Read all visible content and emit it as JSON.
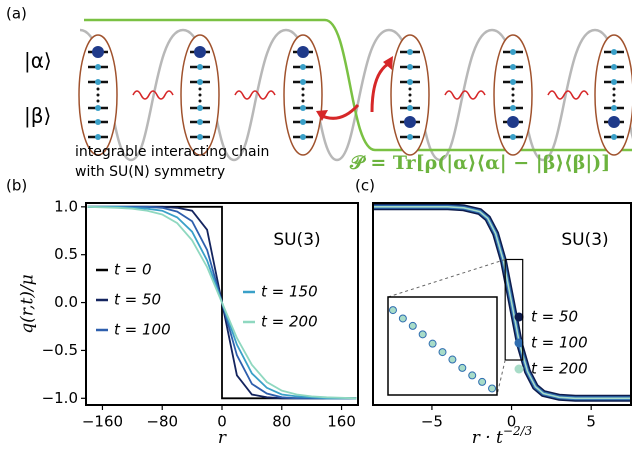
{
  "diagram": {
    "panel_label": "(a)",
    "state_alpha": "|α⟩",
    "state_beta": "|β⟩",
    "caption_line1": "integrable interacting chain",
    "caption_line2": "with SU(N) symmetry",
    "formula": "𝒫 = Tr[ρ(|α⟩⟨α| − |β⟩⟨β|)]"
  },
  "chart_data": [
    {
      "type": "line",
      "panel_label": "(b)",
      "x_label": "r",
      "y_label": "q(r,t)/μ",
      "annotation": "SU(3)",
      "xlim": [
        -182,
        182
      ],
      "ylim": [
        -1.07,
        1.04
      ],
      "xticks": [
        {
          "value": -160,
          "label": "−160"
        },
        {
          "value": -80,
          "label": "−80"
        },
        0,
        80,
        160
      ],
      "yticks": [
        {
          "value": 1,
          "label": "1.0"
        },
        {
          "value": 0.5,
          "label": "0.5"
        },
        {
          "value": 0,
          "label": "0.0"
        },
        {
          "value": -0.5,
          "label": "−0.5"
        },
        {
          "value": -1,
          "label": "−1.0"
        }
      ],
      "x": [
        -180,
        -140,
        -120,
        -100,
        -80,
        -60,
        -40,
        -20,
        0,
        0,
        20,
        40,
        60,
        80,
        100,
        120,
        140,
        180
      ],
      "series": [
        {
          "name": "t = 0",
          "color": "#000000",
          "values": [
            1,
            1,
            1,
            1,
            1,
            1,
            1,
            1,
            1,
            -1,
            -1,
            -1,
            -1,
            -1,
            -1,
            -1,
            -1,
            -1
          ]
        },
        {
          "name": "t = 50",
          "color": "#14245e",
          "values": [
            1,
            1,
            1,
            1,
            1,
            0.99,
            0.96,
            0.76,
            0,
            0,
            -0.76,
            -0.96,
            -0.99,
            -1,
            -1,
            -1,
            -1,
            -1
          ]
        },
        {
          "name": "t = 100",
          "color": "#2e5fad",
          "values": [
            1,
            1,
            1,
            1,
            0.99,
            0.95,
            0.85,
            0.55,
            0,
            0,
            -0.55,
            -0.85,
            -0.95,
            -0.99,
            -1,
            -1,
            -1,
            -1
          ]
        },
        {
          "name": "t = 150",
          "color": "#3aa0c8",
          "values": [
            1,
            1,
            0.99,
            0.98,
            0.96,
            0.89,
            0.74,
            0.44,
            0,
            0,
            -0.44,
            -0.74,
            -0.89,
            -0.96,
            -0.98,
            -0.99,
            -1,
            -1
          ]
        },
        {
          "name": "t = 200",
          "color": "#8fd8c0",
          "values": [
            1,
            0.99,
            0.98,
            0.96,
            0.92,
            0.83,
            0.65,
            0.37,
            0,
            0,
            -0.37,
            -0.65,
            -0.83,
            -0.92,
            -0.96,
            -0.98,
            -0.99,
            -1
          ]
        }
      ]
    },
    {
      "type": "line",
      "panel_label": "(c)",
      "x_label": "r · t",
      "x_label_exponent": "−2/3",
      "annotation": "SU(3)",
      "xlim": [
        -8.7,
        7.5
      ],
      "ylim": [
        -1.07,
        1.04
      ],
      "xticks": [
        {
          "value": -5,
          "label": "−5"
        },
        0,
        5
      ],
      "x": [
        -8.7,
        -5,
        -4,
        -3,
        -2,
        -1.5,
        -1,
        -0.5,
        0,
        0.5,
        1,
        1.5,
        2,
        3,
        4,
        5,
        7.5
      ],
      "series": [
        {
          "name": "t = 50",
          "color": "#0d1b4c",
          "values": [
            1,
            1,
            1,
            0.99,
            0.95,
            0.88,
            0.72,
            0.43,
            0,
            -0.43,
            -0.72,
            -0.88,
            -0.95,
            -0.99,
            -1,
            -1,
            -1
          ]
        },
        {
          "name": "t = 100",
          "color": "#2f6db0",
          "values": [
            1,
            1,
            1,
            0.99,
            0.95,
            0.88,
            0.72,
            0.43,
            0,
            -0.43,
            -0.72,
            -0.88,
            -0.95,
            -0.99,
            -1,
            -1,
            -1
          ]
        },
        {
          "name": "t = 200",
          "color": "#a8dcc8",
          "values": [
            1,
            1,
            1,
            0.99,
            0.95,
            0.88,
            0.72,
            0.43,
            0,
            -0.43,
            -0.72,
            -0.88,
            -0.95,
            -0.99,
            -1,
            -1,
            -1
          ]
        }
      ],
      "inset": {
        "xlim": [
          -0.4,
          0.7
        ],
        "ylim": [
          -0.6,
          0.45
        ],
        "x": [
          -0.35,
          -0.25,
          -0.15,
          -0.05,
          0.05,
          0.15,
          0.25,
          0.35,
          0.45,
          0.55,
          0.65
        ],
        "values": [
          0.31,
          0.22,
          0.14,
          0.05,
          -0.05,
          -0.14,
          -0.22,
          -0.31,
          -0.39,
          -0.46,
          -0.53
        ]
      }
    }
  ]
}
